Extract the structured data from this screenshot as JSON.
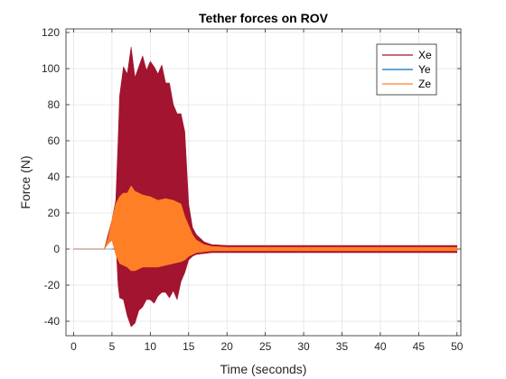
{
  "chart_data": {
    "type": "line",
    "title": "Tether forces on ROV",
    "xlabel": "Time (seconds)",
    "ylabel": "Force (N)",
    "xlim": [
      -1,
      50.5
    ],
    "ylim": [
      -48,
      122
    ],
    "xticks": [
      0,
      5,
      10,
      15,
      20,
      25,
      30,
      35,
      40,
      45,
      50
    ],
    "yticks": [
      -40,
      -20,
      0,
      20,
      40,
      60,
      80,
      100,
      120
    ],
    "grid": true,
    "legend_position": "top-right",
    "series": [
      {
        "name": "Xe",
        "color": "#a2142f",
        "envelope": {
          "x": [
            0,
            4.0,
            4.5,
            5.0,
            5.5,
            5.8,
            6.0,
            6.5,
            7.0,
            7.5,
            8.0,
            8.5,
            9.0,
            9.5,
            10.0,
            10.5,
            11.0,
            11.5,
            12.0,
            12.5,
            13.0,
            13.5,
            14.0,
            14.5,
            15.0,
            15.5,
            16.0,
            17.0,
            18.0,
            20.0,
            25.0,
            50.0
          ],
          "upper": [
            0,
            0,
            8,
            16,
            27,
            60,
            85,
            101,
            97,
            112,
            95,
            101,
            107,
            99,
            104,
            101,
            97,
            102,
            92,
            92,
            80,
            75,
            75,
            65,
            25,
            12,
            8,
            4,
            2.5,
            2,
            2,
            2
          ],
          "lower": [
            0,
            0,
            3,
            5,
            5,
            -20,
            -27,
            -28,
            -37,
            -43,
            -41,
            -34,
            -32,
            -28,
            -28,
            -30,
            -26,
            -24,
            -24,
            -27,
            -23,
            -28,
            -18,
            -13,
            -6,
            -4,
            -3,
            -2.5,
            -2,
            -2,
            -2,
            -2
          ]
        }
      },
      {
        "name": "Ye",
        "color": "#0072bd",
        "envelope": {
          "x": [
            0,
            5.0,
            5.5,
            15.0,
            50.0
          ],
          "upper": [
            0,
            0,
            0.3,
            0.3,
            0.3
          ],
          "lower": [
            0,
            0,
            -0.3,
            -0.3,
            -0.3
          ]
        }
      },
      {
        "name": "Ze",
        "color": "#ff7f27",
        "envelope": {
          "x": [
            0,
            4.0,
            4.5,
            5.0,
            5.5,
            6.0,
            6.5,
            7.0,
            7.5,
            8.0,
            9.0,
            10.0,
            11.0,
            12.0,
            13.0,
            14.0,
            14.5,
            15.0,
            15.5,
            16.0,
            17.0,
            18.0,
            20.0,
            50.0
          ],
          "upper": [
            0,
            0,
            6,
            16,
            25,
            29,
            31,
            31,
            35,
            32,
            30,
            29,
            27,
            28,
            27,
            25,
            18,
            13,
            8,
            5,
            2.5,
            1.5,
            1,
            1
          ],
          "lower": [
            0,
            0,
            3,
            5,
            -3,
            -8,
            -9,
            -10,
            -12,
            -12,
            -10,
            -10,
            -10,
            -9,
            -8,
            -7,
            -6,
            -4,
            -3,
            -2,
            -1.5,
            -1,
            -1,
            -1
          ]
        }
      }
    ]
  }
}
